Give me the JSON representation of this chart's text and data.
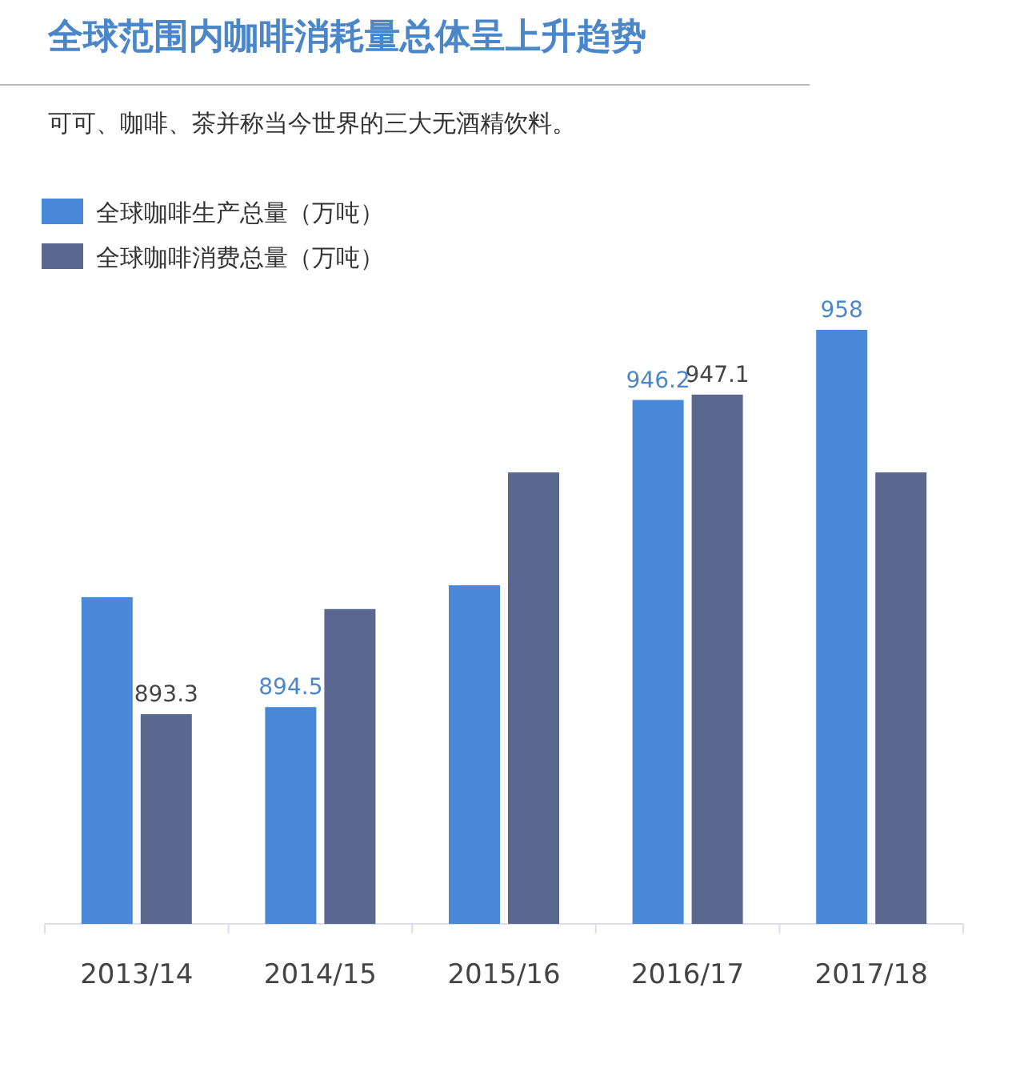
{
  "chart_data": {
    "type": "bar",
    "title": "全球范围内咖啡消耗量总体呈上升趋势",
    "subtitle": "可可、咖啡、茶并称当今世界的三大无酒精饮料。",
    "categories": [
      "2013/14",
      "2014/15",
      "2015/16",
      "2016/17",
      "2017/18"
    ],
    "ylim": [
      858,
      958
    ],
    "legend": "top left",
    "series": [
      {
        "name": "全球咖啡生产总量（万吨）",
        "color": "#4a89d8",
        "values": [
          913,
          894.5,
          915,
          946.2,
          958
        ],
        "value_labels": [
          null,
          "894.5",
          null,
          "946.2",
          "958"
        ]
      },
      {
        "name": "全球咖啡消费总量（万吨）",
        "color": "#5a6890",
        "values": [
          893.3,
          911,
          934,
          947.1,
          934
        ],
        "value_labels": [
          "893.3",
          null,
          null,
          "947.1",
          null
        ]
      }
    ]
  }
}
